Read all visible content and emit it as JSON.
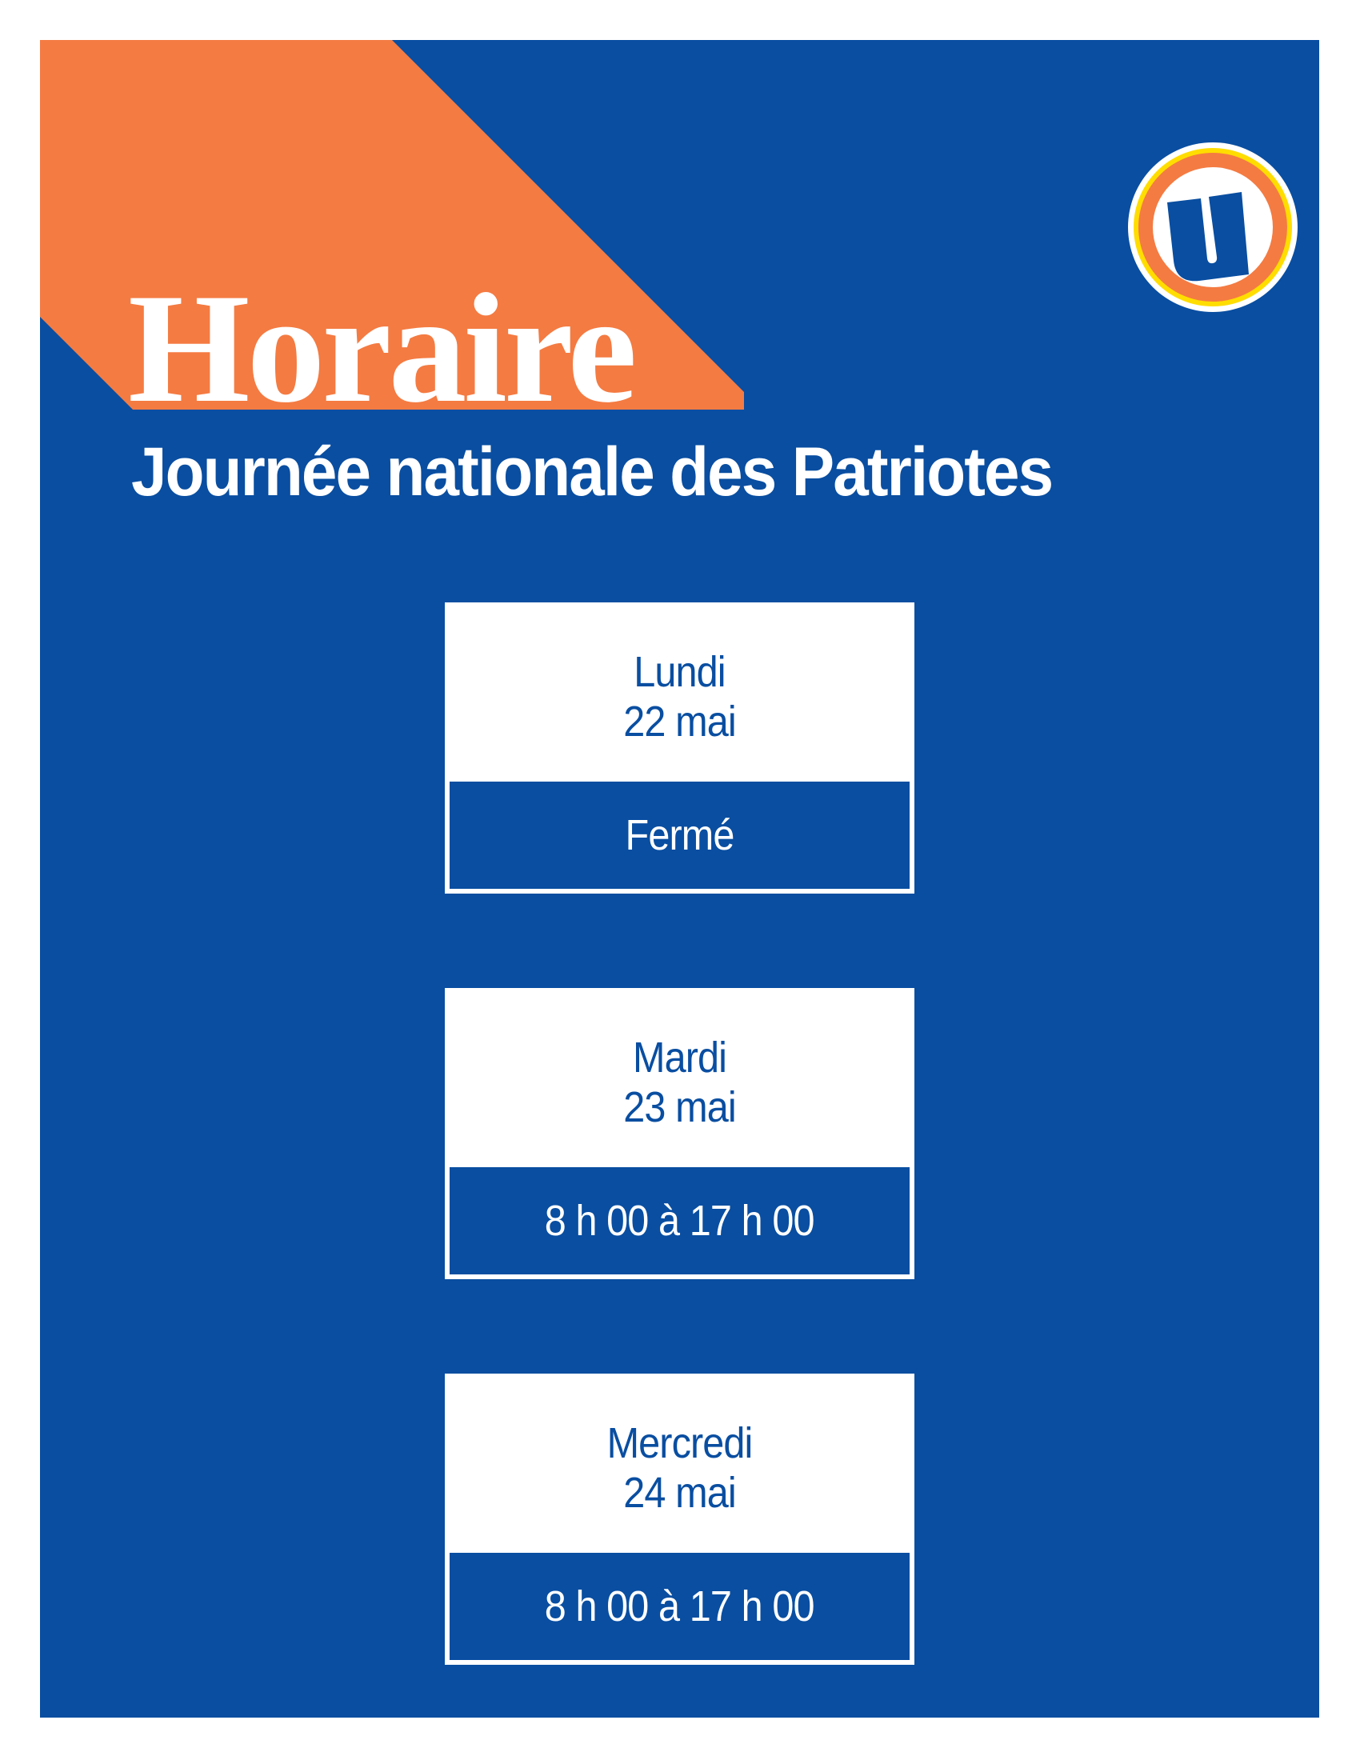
{
  "header": {
    "title": "Horaire",
    "subtitle": "Journée nationale des Patriotes",
    "logo_letter": "U"
  },
  "colors": {
    "background": "#094ea1",
    "accent": "#f47b42",
    "logo_ring_yellow": "#ffdd00",
    "text_light": "#ffffff"
  },
  "schedule": [
    {
      "day": "Lundi",
      "date": "22 mai",
      "hours": "Fermé"
    },
    {
      "day": "Mardi",
      "date": "23 mai",
      "hours": "8 h 00 à 17 h 00"
    },
    {
      "day": "Mercredi",
      "date": "24 mai",
      "hours": "8 h 00 à 17 h 00"
    }
  ]
}
